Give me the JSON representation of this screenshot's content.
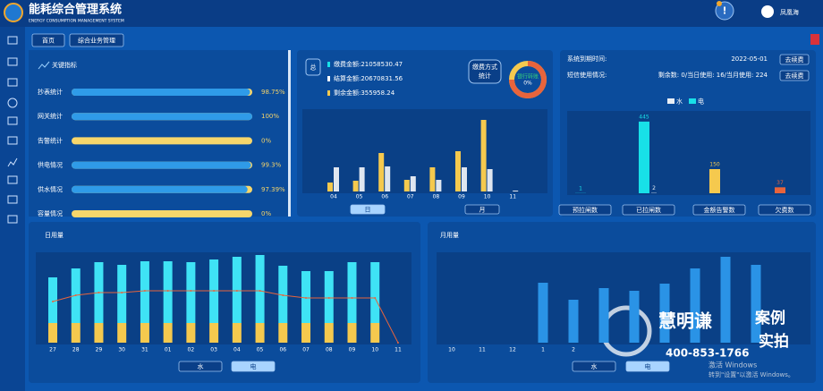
{
  "header": {
    "title": "能耗综合管理系统",
    "subtitle": "ENERGY CONSUMPTION MANAGEMENT SYSTEM",
    "alert": "!",
    "user": "凤凰海"
  },
  "tabs": [
    "首页",
    "综合业务管理"
  ],
  "key_indicators": {
    "title": "关键指标",
    "xlim": [
      0,
      100
    ],
    "rows": [
      {
        "label": "抄表统计",
        "value": 98.75,
        "value_label": "98.75%"
      },
      {
        "label": "网关统计",
        "value": 100,
        "value_label": "100%"
      },
      {
        "label": "告警统计",
        "value": 0,
        "value_label": "0%"
      },
      {
        "label": "供电情况",
        "value": 99.3,
        "value_label": "99.3%"
      },
      {
        "label": "供水情况",
        "value": 97.39,
        "value_label": "97.39%"
      },
      {
        "label": "容量情况",
        "value": 0,
        "value_label": "0%"
      }
    ]
  },
  "payment": {
    "total_badge": "总",
    "lines": [
      "缴费金额:21058530.47",
      "结算金额:20670831.56",
      "剩余金额:355958.24"
    ],
    "method_button": "缴费方式统计",
    "donut": {
      "label": "银行转账",
      "value": 0,
      "value_label": "0%"
    },
    "chart": {
      "type": "bar",
      "categories": [
        "04",
        "05",
        "06",
        "07",
        "08",
        "09",
        "10",
        "11"
      ],
      "series": [
        {
          "color": "#dfe6f0",
          "values": [
            27,
            27,
            28,
            17,
            13,
            27,
            25,
            1
          ]
        },
        {
          "color": "#f5c94e",
          "values": [
            10,
            12,
            43,
            13,
            27,
            45,
            80,
            0
          ]
        }
      ],
      "ylim": [
        0,
        90
      ]
    },
    "buttons": [
      "日",
      "月"
    ]
  },
  "account": {
    "expiry_label": "系统到期时间:",
    "expiry_date": "2022-05-01",
    "sms_label": "短信使用情况:",
    "sms_usage": "剩余数: 0/当日使用: 16/当月使用: 224",
    "renew_buttons": [
      "去续费",
      "去续费"
    ],
    "chart": {
      "type": "bar",
      "categories": [
        "预拉闸数",
        "已拉闸数",
        "金额告警数",
        "欠费数"
      ],
      "series": [
        {
          "name": "水",
          "color": "#e8eef5",
          "values": [
            null,
            2,
            null,
            null
          ]
        },
        {
          "name": "电",
          "color": "#18e0e8",
          "values": [
            1,
            445,
            150,
            37
          ],
          "colors": [
            "#18e0e8",
            "#18e0e8",
            "#f5c94e",
            "#e8643c"
          ]
        }
      ],
      "ylim": [
        0,
        500
      ]
    }
  },
  "daily": {
    "title": "日用量",
    "chart": {
      "type": "bar",
      "categories": [
        "27",
        "28",
        "29",
        "30",
        "31",
        "01",
        "02",
        "03",
        "04",
        "05",
        "06",
        "07",
        "08",
        "09",
        "10",
        "11"
      ],
      "series": [
        {
          "color": "#f5c94e",
          "values": [
            22,
            22,
            22,
            22,
            22,
            22,
            22,
            22,
            22,
            22,
            22,
            22,
            22,
            22,
            22,
            null
          ]
        },
        {
          "color": "#3fe3f5",
          "values": [
            51,
            61,
            68,
            65,
            69,
            69,
            68,
            71,
            74,
            76,
            64,
            58,
            58,
            68,
            68,
            null
          ]
        },
        {
          "type": "line",
          "color": "#e8643c",
          "values": [
            46,
            53,
            56,
            56,
            58,
            58,
            58,
            58,
            58,
            58,
            53,
            50,
            50,
            50,
            50,
            0
          ]
        }
      ],
      "ylim": [
        0,
        100
      ]
    },
    "buttons": [
      "水",
      "电"
    ]
  },
  "monthly": {
    "title": "月用量",
    "chart": {
      "type": "bar",
      "categories": [
        "10",
        "11",
        "12",
        "1",
        "2",
        null,
        null,
        null,
        null,
        null,
        null,
        null
      ],
      "values": [
        null,
        null,
        null,
        67,
        48,
        61,
        58,
        66,
        83,
        96,
        87,
        null
      ],
      "color": "#2a93e6",
      "ylim": [
        0,
        100
      ]
    },
    "buttons": [
      "水",
      "电"
    ]
  },
  "watermark": {
    "brand": "慧明谦",
    "tag1": "案例",
    "tag2": "实拍",
    "phone": "400-853-1766",
    "activate": "激活 Windows",
    "activate_hint": "转到\"设置\"以激活 Windows。"
  }
}
